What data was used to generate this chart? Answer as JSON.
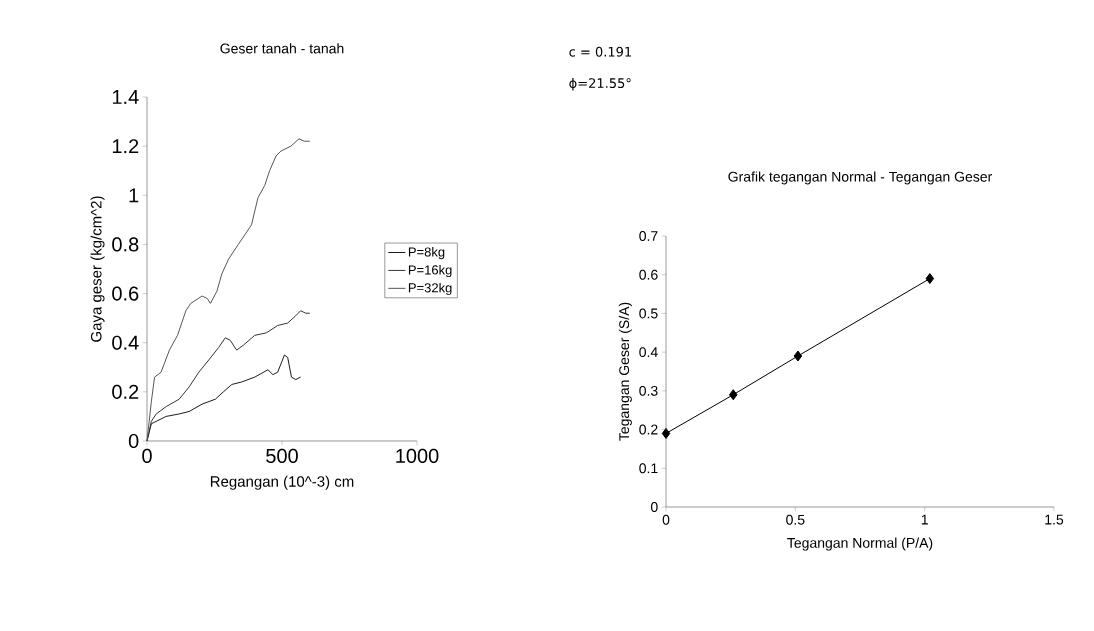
{
  "chart_data": [
    {
      "type": "line",
      "title": "Geser tanah - tanah",
      "xlabel": "Regangan (10^-3) cm",
      "ylabel": "Gaya geser (kg/cm^2)",
      "xlim": [
        0,
        1000
      ],
      "xticks": [
        0,
        500,
        1000
      ],
      "ylim": [
        0,
        1.4
      ],
      "yticks": [
        0,
        0.2,
        0.4,
        0.6,
        0.8,
        1,
        1.2,
        1.4
      ],
      "legend": "right",
      "series": [
        {
          "name": "P=8kg",
          "color": "#1a1a1a",
          "x": [
            0,
            16,
            34,
            71,
            119,
            156,
            204,
            253,
            283,
            314,
            350,
            399,
            448,
            466,
            484,
            509,
            521,
            535,
            551,
            569
          ],
          "values": [
            0,
            0.07,
            0.08,
            0.1,
            0.11,
            0.12,
            0.15,
            0.17,
            0.2,
            0.23,
            0.24,
            0.26,
            0.29,
            0.27,
            0.28,
            0.35,
            0.34,
            0.26,
            0.25,
            0.26
          ]
        },
        {
          "name": "P=16kg",
          "color": "#333333",
          "x": [
            0,
            16,
            34,
            71,
            119,
            156,
            192,
            229,
            265,
            290,
            308,
            332,
            357,
            399,
            442,
            484,
            521,
            551,
            569,
            588,
            603
          ],
          "values": [
            0,
            0.08,
            0.11,
            0.14,
            0.17,
            0.22,
            0.28,
            0.33,
            0.38,
            0.42,
            0.41,
            0.37,
            0.39,
            0.43,
            0.44,
            0.47,
            0.48,
            0.51,
            0.53,
            0.52,
            0.52
          ]
        },
        {
          "name": "P=32kg",
          "color": "#555555",
          "x": [
            0,
            16,
            28,
            52,
            83,
            113,
            144,
            162,
            204,
            223,
            235,
            259,
            277,
            302,
            338,
            363,
            387,
            411,
            436,
            454,
            478,
            496,
            533,
            563,
            582,
            603
          ],
          "values": [
            0,
            0.16,
            0.26,
            0.28,
            0.37,
            0.43,
            0.53,
            0.56,
            0.59,
            0.58,
            0.56,
            0.61,
            0.68,
            0.74,
            0.8,
            0.84,
            0.88,
            0.99,
            1.04,
            1.1,
            1.16,
            1.18,
            1.2,
            1.23,
            1.22,
            1.22
          ]
        }
      ]
    },
    {
      "type": "line",
      "title": "Grafik tegangan Normal - Tegangan Geser",
      "xlabel": "Tegangan Normal (P/A)",
      "ylabel": "Tegangan Geser (S/A)",
      "xlim": [
        0,
        1.5
      ],
      "xticks": [
        0,
        0.5,
        1,
        1.5
      ],
      "ylim": [
        0,
        0.7
      ],
      "yticks": [
        0,
        0.1,
        0.2,
        0.3,
        0.4,
        0.5,
        0.6,
        0.7
      ],
      "marker": "diamond",
      "annotations": [
        "c = 0.191",
        "ϕ=21.55°"
      ],
      "x": [
        0,
        0.26,
        0.51,
        1.02
      ],
      "series": [
        {
          "color": "#000000",
          "values": [
            0.19,
            0.29,
            0.39,
            0.59
          ]
        }
      ]
    }
  ]
}
